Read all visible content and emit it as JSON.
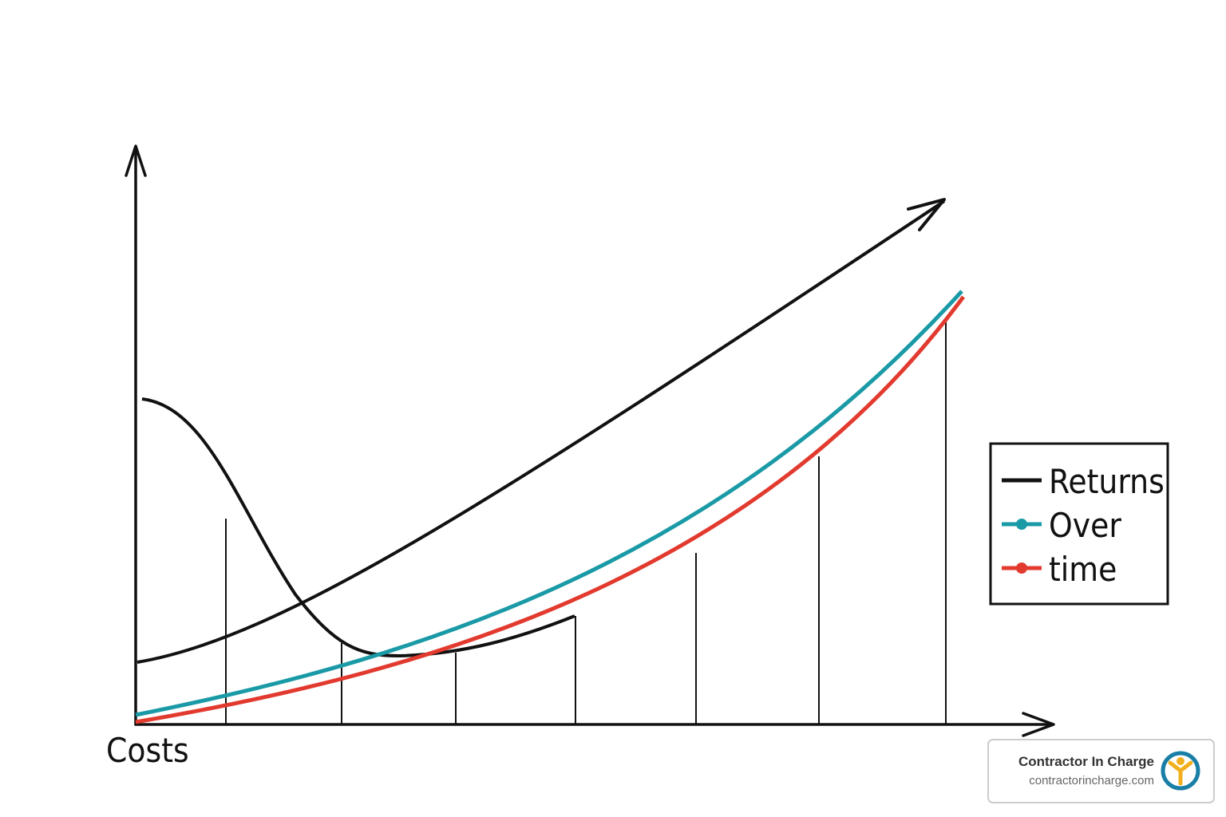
{
  "axis_label": "Costs",
  "legend": {
    "items": [
      "Returns",
      "Over",
      "time"
    ]
  },
  "watermark": {
    "title": "Contractor In Charge",
    "url": "contractorincharge.com"
  }
}
